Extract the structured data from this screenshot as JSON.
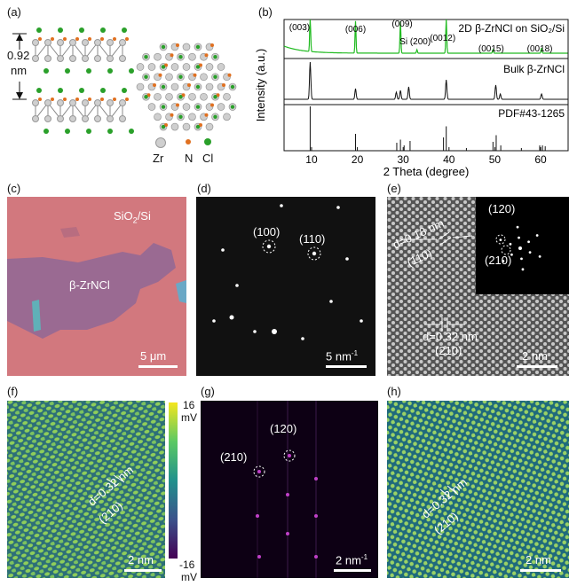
{
  "figure": {
    "labels": {
      "a": "(a)",
      "b": "(b)",
      "c": "(c)",
      "d": "(d)",
      "e": "(e)",
      "f": "(f)",
      "g": "(g)",
      "h": "(h)"
    },
    "panel_a": {
      "height_value": "0.92",
      "height_unit": "nm",
      "legend": [
        "Zr",
        "N",
        "Cl"
      ],
      "colors": {
        "zr": "#cfcfcf",
        "n": "#e07020",
        "cl": "#2aa02a"
      }
    },
    "panel_c": {
      "substrate_label": "SiO",
      "substrate_sub": "2",
      "substrate_suffix": "/Si",
      "flake_label": "β-ZrNCl",
      "scale": "5 μm"
    },
    "panel_d": {
      "spot1": "(100)",
      "spot2": "(110)",
      "scale": "5 nm",
      "scale_sup": "-1"
    },
    "panel_e": {
      "d1": "d=0.18 nm",
      "d1_plane": "(110)",
      "d2": "d=0.32 nm",
      "d2_plane": "(210)",
      "inset_spot1": "(120)",
      "inset_spot2": "(210)",
      "scale": "2 nm"
    },
    "panel_f": {
      "d": "d=0.32 nm",
      "plane": "(210)",
      "colorbar_max": "16",
      "colorbar_max_unit": "mV",
      "colorbar_min": "-16",
      "colorbar_min_unit": "mV",
      "scale": "2 nm"
    },
    "panel_g": {
      "spot1": "(210)",
      "spot2": "(120)",
      "scale": "2 nm",
      "scale_sup": "-1"
    },
    "panel_h": {
      "d": "d=0.32 nm",
      "plane": "(210)",
      "scale": "2 nm"
    }
  },
  "chart_data": {
    "type": "line",
    "xlabel": "2 Theta (degree)",
    "ylabel": "Intensity (a.u.)",
    "xlim": [
      4,
      66
    ],
    "xticks": [
      10,
      20,
      30,
      40,
      50,
      60
    ],
    "series": [
      {
        "name": "2D β-ZrNCl on SiO₂/Si",
        "color": "#22bb22",
        "peaks": [
          {
            "x": 9.7,
            "label": "(003)"
          },
          {
            "x": 19.6,
            "label": "(006)"
          },
          {
            "x": 29.4,
            "label": "(009)"
          },
          {
            "x": 33.0,
            "label": "Si (200)"
          },
          {
            "x": 39.4,
            "label": "(0012)"
          },
          {
            "x": 49.6,
            "label": "(0015)"
          },
          {
            "x": 60.2,
            "label": "(0018)"
          }
        ]
      },
      {
        "name": "Bulk β-ZrNCl",
        "color": "#111111",
        "peaks_x": [
          9.7,
          19.6,
          28.5,
          29.4,
          31.2,
          39.4,
          50.2,
          51.2,
          60.2
        ]
      },
      {
        "name": "PDF#43-1265",
        "color": "#111111",
        "sticks": [
          {
            "x": 9.7,
            "h": 1.0
          },
          {
            "x": 19.6,
            "h": 0.38
          },
          {
            "x": 28.6,
            "h": 0.18
          },
          {
            "x": 29.4,
            "h": 0.25
          },
          {
            "x": 30.2,
            "h": 0.12
          },
          {
            "x": 31.5,
            "h": 0.22
          },
          {
            "x": 38.8,
            "h": 0.3
          },
          {
            "x": 39.4,
            "h": 0.55
          },
          {
            "x": 43.8,
            "h": 0.06
          },
          {
            "x": 49.6,
            "h": 0.2
          },
          {
            "x": 50.3,
            "h": 0.35
          },
          {
            "x": 51.3,
            "h": 0.12
          },
          {
            "x": 55.8,
            "h": 0.06
          },
          {
            "x": 59.8,
            "h": 0.12
          },
          {
            "x": 60.4,
            "h": 0.12
          },
          {
            "x": 61.0,
            "h": 0.1
          }
        ]
      }
    ]
  }
}
